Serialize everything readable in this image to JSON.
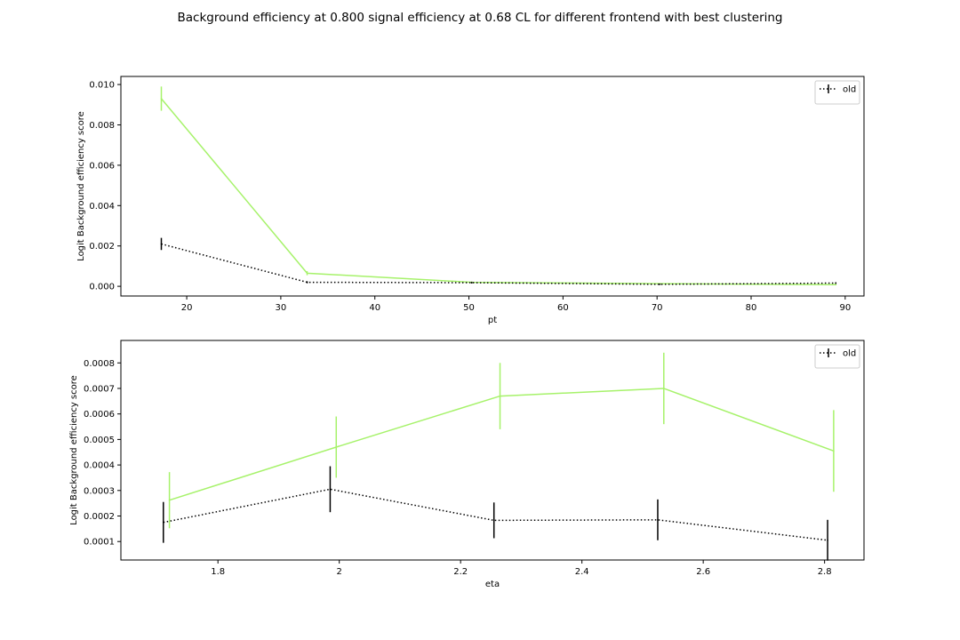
{
  "figure": {
    "title": "Background efficiency at 0.800 signal efficiency at 0.68 CL for different frontend with best clustering"
  },
  "colors": {
    "series_old": "#000000",
    "series_green": "#a6f26a",
    "axes": "#000000"
  },
  "chart_data": [
    {
      "type": "line",
      "xlabel": "pt",
      "ylabel": "Logit Background efficiency score",
      "xlim": [
        13,
        92
      ],
      "ylim": [
        -0.00048,
        0.0104
      ],
      "xticks": [
        20,
        30,
        40,
        50,
        60,
        70,
        80,
        90
      ],
      "yticks": [
        0.0,
        0.002,
        0.004,
        0.006,
        0.008,
        0.01
      ],
      "ytick_labels": [
        "0.000",
        "0.002",
        "0.004",
        "0.006",
        "0.008",
        "0.010"
      ],
      "grid": false,
      "legend_position": "upper-right",
      "series": [
        {
          "name": "old",
          "color": "#000000",
          "linestyle": "dotted",
          "x": [
            17.3,
            32.8,
            50.3,
            70.3,
            89.0
          ],
          "y": [
            0.0021,
            0.0002,
            0.00018,
            0.0001,
            0.00016
          ],
          "yerr": [
            0.0003,
            5e-05,
            4e-05,
            3e-05,
            4e-05
          ]
        },
        {
          "name": "",
          "color": "#a6f26a",
          "linestyle": "solid",
          "x": [
            17.3,
            32.8,
            50.3,
            70.3,
            89.0
          ],
          "y": [
            0.0093,
            0.00065,
            0.0002,
            0.00013,
            8e-05
          ],
          "yerr": [
            0.0006,
            0.0001,
            4e-05,
            3e-05,
            3e-05
          ]
        }
      ]
    },
    {
      "type": "line",
      "xlabel": "eta",
      "ylabel": "Logit Background efficiency score",
      "xlim": [
        1.64,
        2.865
      ],
      "ylim": [
        2.76e-05,
        0.000888
      ],
      "xticks": [
        1.8,
        2.0,
        2.2,
        2.4,
        2.6,
        2.8
      ],
      "yticks": [
        0.0001,
        0.0002,
        0.0003,
        0.0004,
        0.0005,
        0.0006,
        0.0007,
        0.0008
      ],
      "ytick_labels": [
        "0.0001",
        "0.0002",
        "0.0003",
        "0.0004",
        "0.0005",
        "0.0006",
        "0.0007",
        "0.0008"
      ],
      "grid": false,
      "legend_position": "upper-right",
      "series": [
        {
          "name": "old",
          "color": "#000000",
          "linestyle": "dotted",
          "x": [
            1.71,
            1.985,
            2.255,
            2.525,
            2.805
          ],
          "y": [
            0.000175,
            0.000305,
            0.000183,
            0.000185,
            0.000105
          ],
          "yerr": [
            8e-05,
            9e-05,
            7e-05,
            8e-05,
            8e-05
          ]
        },
        {
          "name": "",
          "color": "#a6f26a",
          "linestyle": "solid",
          "x": [
            1.72,
            1.995,
            2.265,
            2.535,
            2.815
          ],
          "y": [
            0.000262,
            0.00047,
            0.00067,
            0.0007,
            0.000455
          ],
          "yerr": [
            0.00011,
            0.00012,
            0.00013,
            0.00014,
            0.00016
          ]
        }
      ]
    }
  ]
}
